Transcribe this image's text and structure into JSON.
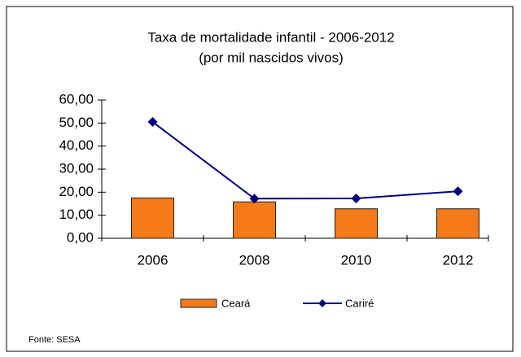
{
  "chart_data": {
    "type": "combo",
    "title": "Taxa de mortalidade infantil - 2006-2012",
    "subtitle": "(por mil nascidos vivos)",
    "categories": [
      "2006",
      "2008",
      "2010",
      "2012"
    ],
    "series": [
      {
        "name": "Ceará",
        "type": "bar",
        "color": "#f47a1a",
        "values": [
          17.5,
          15.8,
          12.8,
          12.8
        ]
      },
      {
        "name": "Cariré",
        "type": "line",
        "color": "#000080",
        "values": [
          50.5,
          17.2,
          17.3,
          20.4
        ]
      }
    ],
    "ylim": [
      0,
      60
    ],
    "yticks": [
      {
        "value": 0,
        "label": "0,00"
      },
      {
        "value": 10,
        "label": "10,00"
      },
      {
        "value": 20,
        "label": "20,00"
      },
      {
        "value": 30,
        "label": "30,00"
      },
      {
        "value": 40,
        "label": "40,00"
      },
      {
        "value": 50,
        "label": "50,00"
      },
      {
        "value": 60,
        "label": "60,00"
      }
    ],
    "source": "Fonte: SESA"
  }
}
